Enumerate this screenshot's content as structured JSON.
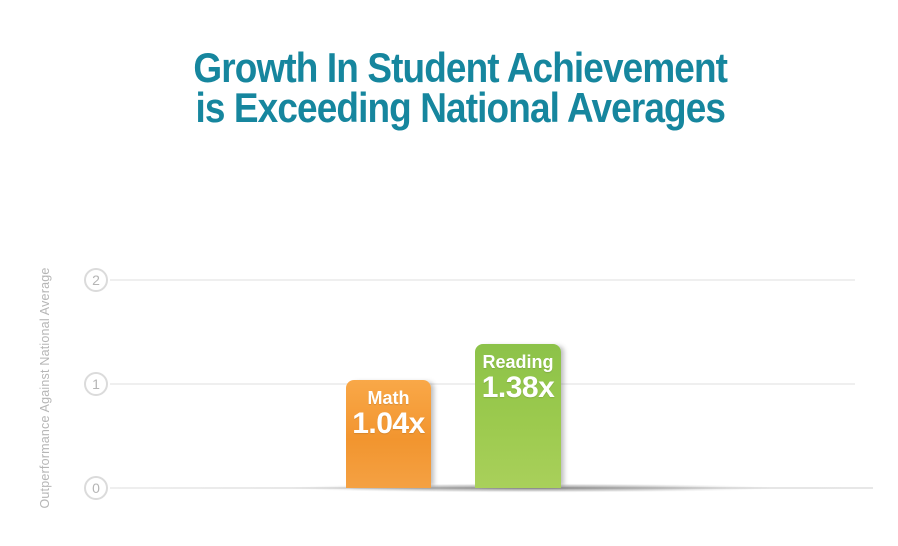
{
  "title": {
    "line1": "Growth In Student Achievement",
    "line2": "is Exceeding National Averages"
  },
  "chart_data": {
    "type": "bar",
    "title": "Growth In Student Achievement is Exceeding National Averages",
    "categories": [
      "Math",
      "Reading"
    ],
    "values": [
      1.04,
      1.38
    ],
    "value_labels": [
      "1.04x",
      "1.38x"
    ],
    "xlabel": "",
    "ylabel": "Outperformance Against National Average",
    "yticks": [
      2,
      1,
      0
    ],
    "ytick_labels": [
      "2",
      "1",
      "0"
    ],
    "ylim": [
      0,
      2.2
    ],
    "grid": true,
    "legend": false,
    "bar_colors": [
      "#F49C3C",
      "#99C94F"
    ]
  },
  "colors": {
    "title_text": "#16869E",
    "axis_text": "#B6B6B6",
    "tick_circle_border": "#DBDBDB",
    "gridline": "#EFEFEF",
    "math_bar_top": "#F9A848",
    "math_bar_bottom": "#F2952F",
    "reading_bar_top": "#8CC249",
    "reading_bar_bottom": "#A9D05B",
    "bar_label_text": "#FFFFFF"
  }
}
